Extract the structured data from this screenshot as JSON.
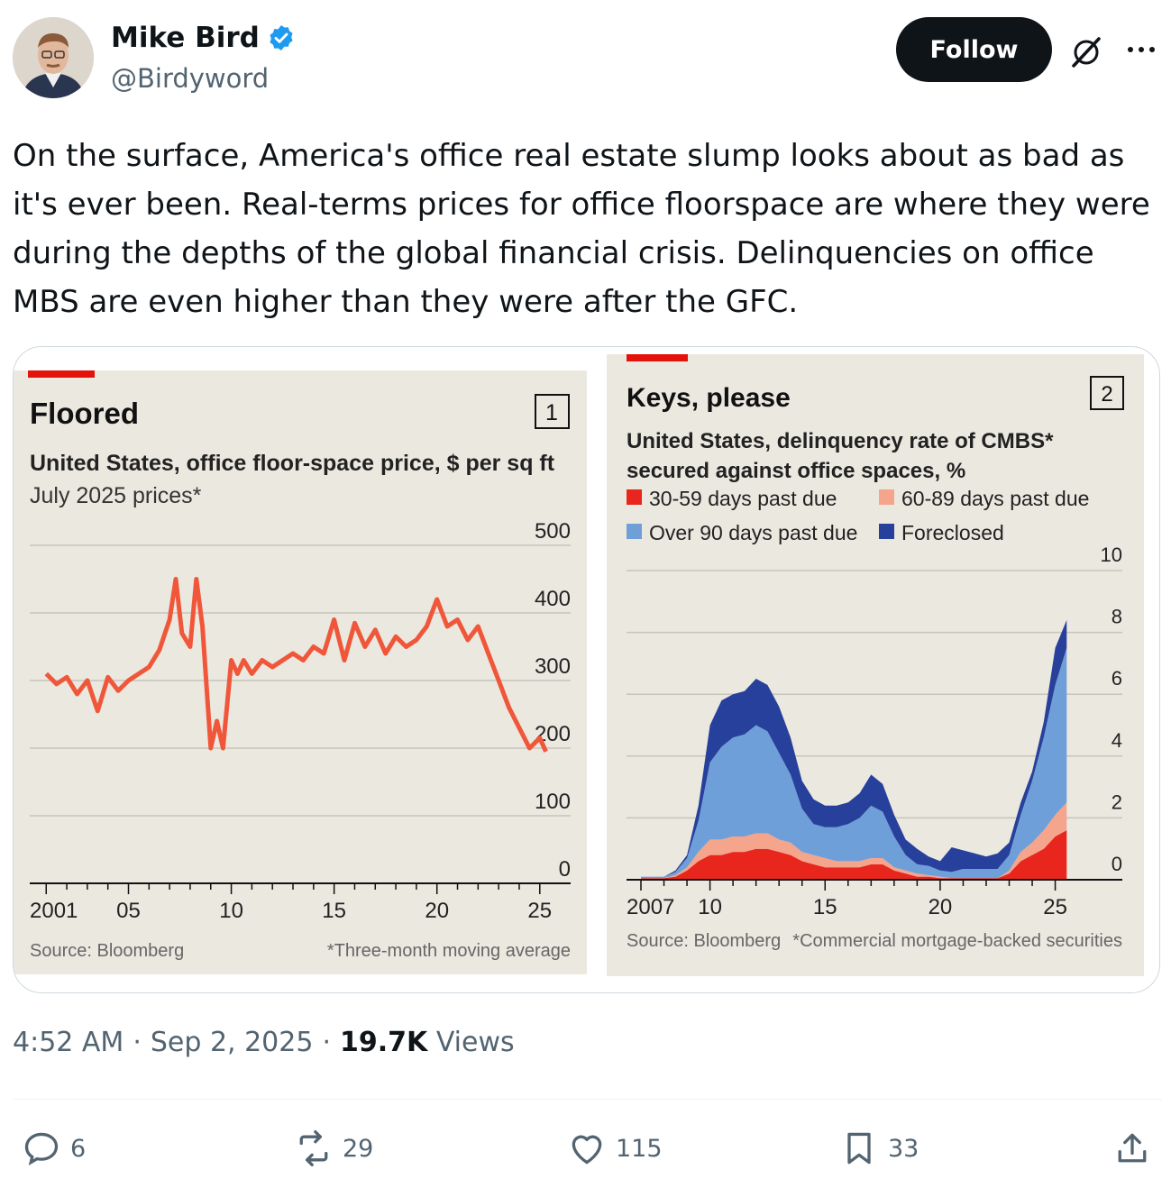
{
  "author": {
    "name": "Mike Bird",
    "handle": "@Birdyword",
    "follow_label": "Follow"
  },
  "tweet": {
    "text": "On the surface, America's office real estate slump looks about as bad as it's ever been. Real-terms prices for office floorspace are where they were during the depths of the global financial crisis. Delinquencies on office MBS are even higher than they were after the GFC."
  },
  "meta": {
    "time": "4:52 AM",
    "date": "Sep 2, 2025",
    "views_count": "19.7K",
    "views_label": "Views",
    "sep": "·"
  },
  "actions": {
    "replies": "6",
    "reposts": "29",
    "likes": "115",
    "bookmarks": "33"
  },
  "colors": {
    "chart_bg": "#ebe8e0",
    "accent_red": "#e3120b",
    "price_line": "#f0573a",
    "band_30_59": "#e8261d",
    "band_60_89": "#f4a58c",
    "band_over90": "#6f9fd8",
    "band_foreclosed": "#27409b"
  },
  "chart_data": [
    {
      "type": "line",
      "number": "1",
      "title": "Floored",
      "subtitle": "United States, office floor-space price, $ per sq ft",
      "subtitle2": "July 2025 prices*",
      "source": "Source: Bloomberg",
      "note": "*Three-month moving average",
      "x_tick_labels": [
        "2001",
        "05",
        "10",
        "15",
        "20",
        "25"
      ],
      "y_tick_labels": [
        "500",
        "400",
        "300",
        "200",
        "100",
        "0"
      ],
      "ylim": [
        0,
        500
      ],
      "xlim": [
        2000.2,
        2026.5
      ],
      "series": [
        {
          "x": [
            2001.0,
            2001.5,
            2002.0,
            2002.5,
            2003.0,
            2003.5,
            2004.0,
            2004.5,
            2005.0,
            2005.5,
            2006.0,
            2006.5,
            2007.0,
            2007.3,
            2007.6,
            2008.0,
            2008.3,
            2008.6,
            2009.0,
            2009.3,
            2009.6,
            2010.0,
            2010.3,
            2010.6,
            2011.0,
            2011.5,
            2012.0,
            2012.5,
            2013.0,
            2013.5,
            2014.0,
            2014.5,
            2015.0,
            2015.5,
            2016.0,
            2016.5,
            2017.0,
            2017.5,
            2018.0,
            2018.5,
            2019.0,
            2019.5,
            2020.0,
            2020.5,
            2021.0,
            2021.5,
            2022.0,
            2022.5,
            2023.0,
            2023.5,
            2024.0,
            2024.5,
            2025.0,
            2025.3
          ],
          "values": [
            310,
            295,
            305,
            280,
            300,
            255,
            305,
            285,
            300,
            310,
            320,
            345,
            390,
            450,
            370,
            350,
            450,
            380,
            200,
            240,
            200,
            330,
            310,
            330,
            310,
            330,
            320,
            330,
            340,
            330,
            350,
            340,
            390,
            330,
            385,
            350,
            375,
            340,
            365,
            350,
            360,
            380,
            420,
            380,
            390,
            360,
            380,
            340,
            300,
            260,
            230,
            200,
            215,
            195
          ]
        }
      ]
    },
    {
      "type": "area",
      "number": "2",
      "title": "Keys, please",
      "subtitle_line1": "United States, delinquency rate of CMBS*",
      "subtitle_line2": "secured against office spaces, %",
      "source": "Source: Bloomberg",
      "note": "*Commercial mortgage-backed securities",
      "x_tick_labels": [
        "2007",
        "10",
        "15",
        "20",
        "25"
      ],
      "y_tick_labels": [
        "10",
        "8",
        "6",
        "4",
        "2",
        "0"
      ],
      "ylim": [
        0,
        10
      ],
      "xlim": [
        2007.0,
        2025.8
      ],
      "stacked": true,
      "legend": [
        "30-59 days past due",
        "60-89 days past due",
        "Over 90 days past due",
        "Foreclosed"
      ],
      "x": [
        2007.0,
        2007.5,
        2008.0,
        2008.5,
        2009.0,
        2009.5,
        2010.0,
        2010.5,
        2011.0,
        2011.5,
        2012.0,
        2012.5,
        2013.0,
        2013.5,
        2014.0,
        2014.5,
        2015.0,
        2015.5,
        2016.0,
        2016.5,
        2017.0,
        2017.5,
        2018.0,
        2018.5,
        2019.0,
        2019.5,
        2020.0,
        2020.5,
        2021.0,
        2021.5,
        2022.0,
        2022.5,
        2023.0,
        2023.5,
        2024.0,
        2024.5,
        2025.0,
        2025.5
      ],
      "series": [
        {
          "name": "30-59 days past due",
          "values": [
            0.05,
            0.05,
            0.05,
            0.1,
            0.3,
            0.6,
            0.8,
            0.8,
            0.9,
            0.9,
            1.0,
            1.0,
            0.9,
            0.8,
            0.6,
            0.5,
            0.4,
            0.4,
            0.4,
            0.4,
            0.5,
            0.5,
            0.3,
            0.2,
            0.1,
            0.1,
            0.05,
            0.05,
            0.05,
            0.05,
            0.05,
            0.05,
            0.2,
            0.6,
            0.8,
            1.0,
            1.4,
            1.6
          ]
        },
        {
          "name": "60-89 days past due",
          "values": [
            0.0,
            0.0,
            0.0,
            0.05,
            0.1,
            0.3,
            0.5,
            0.5,
            0.5,
            0.5,
            0.5,
            0.5,
            0.4,
            0.4,
            0.3,
            0.3,
            0.3,
            0.2,
            0.2,
            0.2,
            0.2,
            0.2,
            0.1,
            0.1,
            0.1,
            0.05,
            0.05,
            0.0,
            0.0,
            0.0,
            0.0,
            0.0,
            0.1,
            0.3,
            0.4,
            0.6,
            0.7,
            0.9
          ]
        },
        {
          "name": "Over 90 days past due",
          "values": [
            0.05,
            0.05,
            0.05,
            0.1,
            0.3,
            1.0,
            2.5,
            3.0,
            3.2,
            3.3,
            3.5,
            3.3,
            2.8,
            2.2,
            1.4,
            1.0,
            1.0,
            1.1,
            1.2,
            1.4,
            1.7,
            1.5,
            1.0,
            0.5,
            0.3,
            0.3,
            0.2,
            0.2,
            0.3,
            0.3,
            0.3,
            0.3,
            0.5,
            1.2,
            2.0,
            3.0,
            4.2,
            5.0
          ]
        },
        {
          "name": "Foreclosed",
          "values": [
            0.0,
            0.0,
            0.0,
            0.05,
            0.1,
            0.5,
            1.2,
            1.5,
            1.4,
            1.4,
            1.5,
            1.5,
            1.5,
            1.2,
            0.9,
            0.8,
            0.7,
            0.7,
            0.7,
            0.8,
            1.0,
            0.9,
            0.7,
            0.5,
            0.5,
            0.3,
            0.3,
            0.8,
            0.6,
            0.5,
            0.4,
            0.5,
            0.4,
            0.4,
            0.3,
            0.5,
            1.2,
            0.9
          ]
        }
      ]
    }
  ]
}
